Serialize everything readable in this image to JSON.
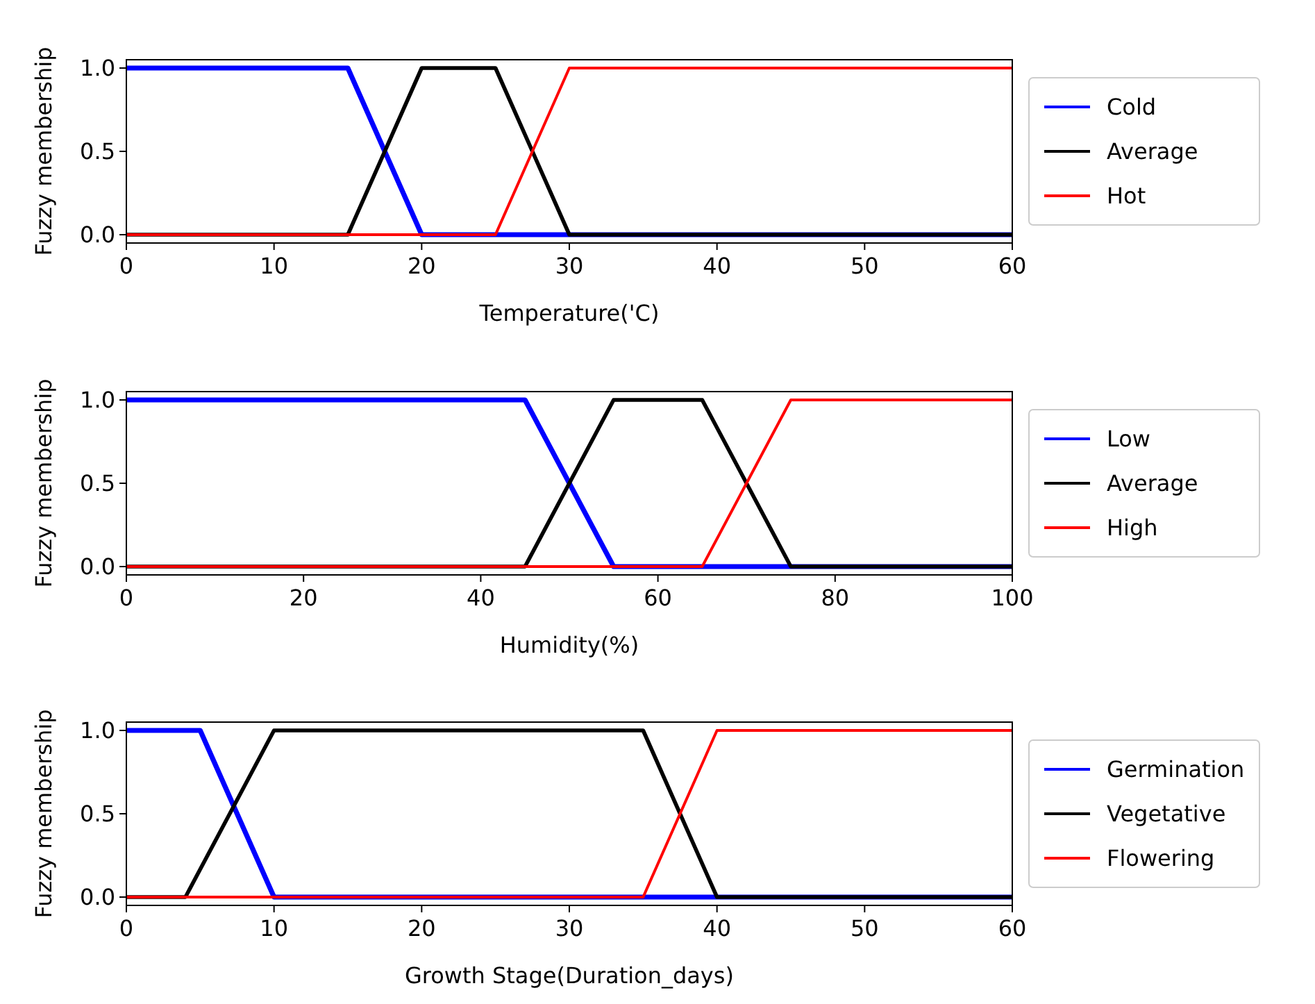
{
  "chart_data": [
    {
      "type": "line",
      "xlabel": "Temperature('C)",
      "ylabel": "Fuzzy membership",
      "xlim": [
        0,
        60
      ],
      "xticks": [
        0,
        10,
        20,
        30,
        40,
        50,
        60
      ],
      "ylim": [
        -0.05,
        1.05
      ],
      "yticks": [
        {
          "value": 0,
          "label": "0.0"
        },
        {
          "value": 0.5,
          "label": "0.5"
        },
        {
          "value": 1,
          "label": "1.0"
        }
      ],
      "legend": "right",
      "grid": false,
      "marker": "none",
      "line_style": "solid",
      "series": [
        {
          "name": "Cold",
          "color": "#0000ff",
          "x": [
            0,
            15,
            20,
            60
          ],
          "values": [
            1,
            1,
            0,
            0
          ]
        },
        {
          "name": "Average",
          "color": "#000000",
          "x": [
            0,
            15,
            20,
            25,
            30,
            60
          ],
          "values": [
            0,
            0,
            1,
            1,
            0,
            0
          ]
        },
        {
          "name": "Hot",
          "color": "#ff0000",
          "x": [
            0,
            25,
            30,
            60
          ],
          "values": [
            0,
            0,
            1,
            1
          ]
        }
      ]
    },
    {
      "type": "line",
      "xlabel": "Humidity(%)",
      "ylabel": "Fuzzy membership",
      "xlim": [
        0,
        100
      ],
      "xticks": [
        0,
        20,
        40,
        60,
        80,
        100
      ],
      "ylim": [
        -0.05,
        1.05
      ],
      "yticks": [
        {
          "value": 0,
          "label": "0.0"
        },
        {
          "value": 0.5,
          "label": "0.5"
        },
        {
          "value": 1,
          "label": "1.0"
        }
      ],
      "legend": "right",
      "grid": false,
      "marker": "none",
      "line_style": "solid",
      "series": [
        {
          "name": "Low",
          "color": "#0000ff",
          "x": [
            0,
            45,
            55,
            100
          ],
          "values": [
            1,
            1,
            0,
            0
          ]
        },
        {
          "name": "Average",
          "color": "#000000",
          "x": [
            0,
            45,
            55,
            65,
            75,
            100
          ],
          "values": [
            0,
            0,
            1,
            1,
            0,
            0
          ]
        },
        {
          "name": "High",
          "color": "#ff0000",
          "x": [
            0,
            65,
            75,
            100
          ],
          "values": [
            0,
            0,
            1,
            1
          ]
        }
      ]
    },
    {
      "type": "line",
      "xlabel": "Growth Stage(Duration_days)",
      "ylabel": "Fuzzy membership",
      "xlim": [
        0,
        60
      ],
      "xticks": [
        0,
        10,
        20,
        30,
        40,
        50,
        60
      ],
      "ylim": [
        -0.05,
        1.05
      ],
      "yticks": [
        {
          "value": 0,
          "label": "0.0"
        },
        {
          "value": 0.5,
          "label": "0.5"
        },
        {
          "value": 1,
          "label": "1.0"
        }
      ],
      "legend": "right",
      "grid": false,
      "marker": "none",
      "line_style": "solid",
      "series": [
        {
          "name": "Germination",
          "color": "#0000ff",
          "x": [
            0,
            5,
            10,
            60
          ],
          "values": [
            1,
            1,
            0,
            0
          ]
        },
        {
          "name": "Vegetative",
          "color": "#000000",
          "x": [
            0,
            4,
            10,
            35,
            40,
            60
          ],
          "values": [
            0,
            0,
            1,
            1,
            0,
            0
          ]
        },
        {
          "name": "Flowering",
          "color": "#ff0000",
          "x": [
            0,
            35,
            40,
            60
          ],
          "values": [
            0,
            0,
            1,
            1
          ]
        }
      ]
    }
  ]
}
